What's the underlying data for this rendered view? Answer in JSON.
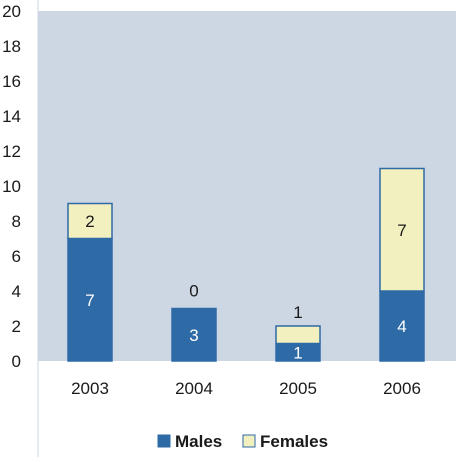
{
  "chart_data": {
    "type": "bar",
    "stacked": true,
    "categories": [
      "2003",
      "2004",
      "2005",
      "2006"
    ],
    "series": [
      {
        "name": "Males",
        "values": [
          7,
          3,
          1,
          4
        ],
        "color": "#2e6aa6",
        "label_color": "#ffffff"
      },
      {
        "name": "Females",
        "values": [
          2,
          0,
          1,
          7
        ],
        "color": "#f3f0c0",
        "label_color": "#1a1a1a"
      }
    ],
    "ylim": [
      0,
      20
    ],
    "yticks": [
      0,
      2,
      4,
      6,
      8,
      10,
      12,
      14,
      16,
      18,
      20
    ],
    "grid": false,
    "legend": "bottom",
    "plot_background": "#cdd7e3",
    "bar_outline": "#2e6aa6"
  }
}
